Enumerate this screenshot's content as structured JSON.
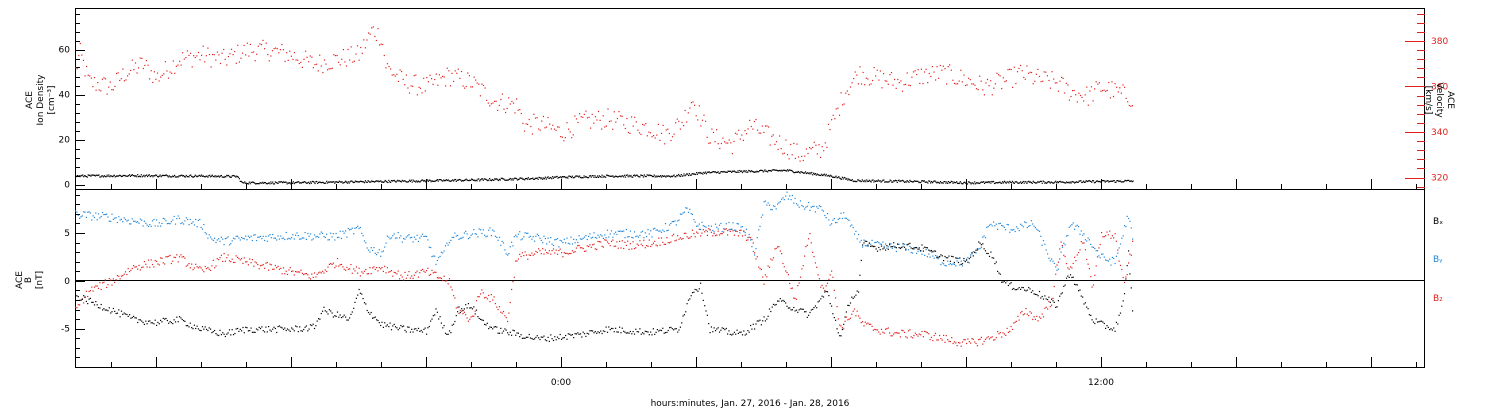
{
  "chart_data": [
    {
      "type": "scatter",
      "panel": "ion-density-velocity",
      "xlabel": "hours:minutes, Jan. 27, 2016 - Jan. 28, 2016",
      "x_unit": "hours relative to 2016-01-28 00:00",
      "xlim": [
        -10.8,
        19.2
      ],
      "x_ticks": [
        {
          "x": 0,
          "label": "0:00"
        },
        {
          "x": 12,
          "label": "12:00"
        }
      ],
      "ylabel_left": [
        "ACE",
        "Ion Density",
        "[cm⁻³]"
      ],
      "ylim_left": [
        -2,
        78
      ],
      "yticks_left": [
        0,
        20,
        40,
        60
      ],
      "ylabel_right": [
        "ACE",
        "Velocity",
        "[km/s]"
      ],
      "ylim_right": [
        315,
        394
      ],
      "yticks_right": [
        320,
        340,
        360,
        380
      ],
      "series": [
        {
          "axis": "left",
          "color": "#000000",
          "points": [
            [
              -10.8,
              4
            ],
            [
              -9.5,
              4.2
            ],
            [
              -8,
              4
            ],
            [
              -7.2,
              3.8
            ],
            [
              -7.1,
              1
            ],
            [
              -6,
              1
            ],
            [
              -4,
              1.6
            ],
            [
              -2,
              2.2
            ],
            [
              -0.5,
              3
            ],
            [
              0,
              3.5
            ],
            [
              1,
              4
            ],
            [
              2.5,
              4
            ],
            [
              3.2,
              5.5
            ],
            [
              4,
              6
            ],
            [
              5,
              6.5
            ],
            [
              6,
              4
            ],
            [
              6.5,
              2
            ],
            [
              8,
              1.5
            ],
            [
              9,
              1
            ],
            [
              10,
              1.2
            ],
            [
              11,
              1.3
            ],
            [
              12.7,
              1.8
            ]
          ]
        },
        {
          "axis": "right",
          "color": "#e0201d",
          "points": [
            [
              -10.8,
              367
            ],
            [
              -10.7,
              375
            ],
            [
              -10.5,
              362
            ],
            [
              -10,
              360
            ],
            [
              -9.7,
              366
            ],
            [
              -9.3,
              370
            ],
            [
              -9,
              364
            ],
            [
              -8.5,
              372
            ],
            [
              -8,
              374
            ],
            [
              -7.5,
              372
            ],
            [
              -7,
              376
            ],
            [
              -6.5,
              376
            ],
            [
              -6,
              374
            ],
            [
              -5.5,
              370
            ],
            [
              -5,
              372
            ],
            [
              -4.5,
              374
            ],
            [
              -4.2,
              385
            ],
            [
              -4,
              382
            ],
            [
              -3.9,
              369
            ],
            [
              -3.5,
              362
            ],
            [
              -3,
              360
            ],
            [
              -2.5,
              365
            ],
            [
              -2,
              362
            ],
            [
              -1.5,
              354
            ],
            [
              -1,
              352
            ],
            [
              -0.8,
              343
            ],
            [
              -0.5,
              344
            ],
            [
              0,
              340
            ],
            [
              0.5,
              345
            ],
            [
              1,
              346
            ],
            [
              1.5,
              344
            ],
            [
              2,
              342
            ],
            [
              2.3,
              339
            ],
            [
              2.7,
              345
            ],
            [
              2.9,
              355
            ],
            [
              3.3,
              338
            ],
            [
              3.8,
              335
            ],
            [
              4.2,
              343
            ],
            [
              4.8,
              336
            ],
            [
              5.3,
              330
            ],
            [
              5.8,
              333
            ],
            [
              6.1,
              348
            ],
            [
              6.3,
              358
            ],
            [
              6.6,
              366
            ],
            [
              7,
              364
            ],
            [
              7.5,
              362
            ],
            [
              8,
              365
            ],
            [
              8.5,
              366
            ],
            [
              9,
              363
            ],
            [
              9.4,
              360
            ],
            [
              9.9,
              363
            ],
            [
              10.2,
              366
            ],
            [
              10.5,
              364
            ],
            [
              11,
              362
            ],
            [
              11.3,
              358
            ],
            [
              11.7,
              356
            ],
            [
              12,
              360
            ],
            [
              12.3,
              358
            ],
            [
              12.7,
              355
            ]
          ]
        }
      ]
    },
    {
      "type": "scatter",
      "panel": "magnetic-field",
      "xlim": [
        -10.8,
        19.2
      ],
      "ylabel": [
        "ACE",
        "B",
        "[nT]"
      ],
      "ylim": [
        -9,
        9.5
      ],
      "yticks": [
        -5,
        0,
        5
      ],
      "zero_line": true,
      "legend": [
        "Bₓ",
        "Bᵧ",
        "B₂"
      ],
      "series": [
        {
          "name": "Bₓ",
          "color": "#000000",
          "points": [
            [
              -10.8,
              -1.5
            ],
            [
              -10,
              -3
            ],
            [
              -9.5,
              -4
            ],
            [
              -9,
              -4.3
            ],
            [
              -8.5,
              -4
            ],
            [
              -8,
              -5
            ],
            [
              -7.5,
              -5.5
            ],
            [
              -7,
              -5
            ],
            [
              -6,
              -5
            ],
            [
              -5.5,
              -4.8
            ],
            [
              -5.3,
              -3
            ],
            [
              -5,
              -3.5
            ],
            [
              -4.7,
              -4
            ],
            [
              -4.5,
              -1
            ],
            [
              -4.3,
              -3
            ],
            [
              -4,
              -4.5
            ],
            [
              -3.5,
              -5
            ],
            [
              -3,
              -5.2
            ],
            [
              -2.8,
              -3
            ],
            [
              -2.6,
              -5
            ],
            [
              -2.5,
              -5.5
            ],
            [
              -2.3,
              -3
            ],
            [
              -2,
              -2.5
            ],
            [
              -1.8,
              -4
            ],
            [
              -1.5,
              -5
            ],
            [
              -1,
              -5.5
            ],
            [
              -0.5,
              -6
            ],
            [
              0,
              -5.8
            ],
            [
              0.5,
              -5.5
            ],
            [
              1,
              -5
            ],
            [
              2,
              -5.3
            ],
            [
              2.6,
              -5
            ],
            [
              2.9,
              -1
            ],
            [
              3.1,
              -0.5
            ],
            [
              3.3,
              -5
            ],
            [
              4,
              -5.5
            ],
            [
              4.5,
              -4
            ],
            [
              4.8,
              -2
            ],
            [
              5.5,
              -3.5
            ],
            [
              5.9,
              -1
            ],
            [
              6.2,
              -6
            ],
            [
              6.4,
              -2
            ],
            [
              6.6,
              -1
            ],
            [
              6.7,
              4
            ],
            [
              7,
              3.5
            ],
            [
              7.5,
              3.8
            ],
            [
              8,
              3.5
            ],
            [
              8.5,
              2.5
            ],
            [
              9,
              2
            ],
            [
              9.3,
              4
            ],
            [
              9.6,
              2.5
            ],
            [
              9.8,
              0
            ],
            [
              10,
              -0.5
            ],
            [
              10.5,
              -1
            ],
            [
              11,
              -2.5
            ],
            [
              11.3,
              1
            ],
            [
              11.6,
              -2
            ],
            [
              11.8,
              -4
            ],
            [
              12,
              -4.5
            ],
            [
              12.3,
              -5
            ],
            [
              12.5,
              -2
            ],
            [
              12.6,
              3
            ],
            [
              12.7,
              -3.5
            ]
          ]
        },
        {
          "name": "Bᵧ",
          "color": "#1e86d9",
          "points": [
            [
              -10.8,
              7
            ],
            [
              -10,
              6.7
            ],
            [
              -9.5,
              6.3
            ],
            [
              -9,
              6
            ],
            [
              -8.5,
              6.5
            ],
            [
              -8,
              6
            ],
            [
              -7.8,
              4.5
            ],
            [
              -7.5,
              4.2
            ],
            [
              -7,
              4.5
            ],
            [
              -6,
              4.8
            ],
            [
              -5,
              4.7
            ],
            [
              -4.5,
              5.5
            ],
            [
              -4.3,
              3.5
            ],
            [
              -4,
              3
            ],
            [
              -3.8,
              5
            ],
            [
              -3.5,
              4.5
            ],
            [
              -3,
              4.5
            ],
            [
              -2.8,
              2
            ],
            [
              -2.6,
              3
            ],
            [
              -2.5,
              4.5
            ],
            [
              -2,
              5
            ],
            [
              -1.5,
              5.2
            ],
            [
              -1.2,
              3
            ],
            [
              -1,
              4.8
            ],
            [
              -0.5,
              4.5
            ],
            [
              0,
              4
            ],
            [
              0.5,
              4.5
            ],
            [
              1,
              5
            ],
            [
              2,
              5
            ],
            [
              2.5,
              6
            ],
            [
              2.8,
              7.5
            ],
            [
              3,
              6
            ],
            [
              3.3,
              5.5
            ],
            [
              3.8,
              5.8
            ],
            [
              4.1,
              5.3
            ],
            [
              4.3,
              3
            ],
            [
              4.5,
              8
            ],
            [
              4.8,
              7.8
            ],
            [
              5,
              9
            ],
            [
              5.3,
              8
            ],
            [
              5.8,
              7.5
            ],
            [
              6,
              6
            ],
            [
              6.3,
              7
            ],
            [
              6.5,
              5
            ],
            [
              6.7,
              4
            ],
            [
              7.1,
              3.7
            ],
            [
              7.6,
              3.5
            ],
            [
              8,
              3.2
            ],
            [
              8.5,
              2
            ],
            [
              9,
              2
            ],
            [
              9.3,
              3.5
            ],
            [
              9.5,
              6
            ],
            [
              10,
              5.5
            ],
            [
              10.5,
              6
            ],
            [
              10.8,
              3
            ],
            [
              11,
              1
            ],
            [
              11.3,
              6
            ],
            [
              11.6,
              5
            ],
            [
              12,
              2.5
            ],
            [
              12.3,
              2
            ],
            [
              12.6,
              7
            ],
            [
              12.7,
              4
            ]
          ]
        },
        {
          "name": "B₂",
          "color": "#e0201d",
          "points": [
            [
              -10.8,
              -3
            ],
            [
              -10.5,
              -1
            ],
            [
              -10,
              0
            ],
            [
              -9.5,
              1.5
            ],
            [
              -9,
              2
            ],
            [
              -8.5,
              2.5
            ],
            [
              -8,
              1
            ],
            [
              -7.5,
              2.5
            ],
            [
              -7,
              2
            ],
            [
              -6.5,
              1.5
            ],
            [
              -6,
              1
            ],
            [
              -5.5,
              0.5
            ],
            [
              -5,
              2
            ],
            [
              -4.5,
              1
            ],
            [
              -4,
              1.5
            ],
            [
              -3.5,
              0.5
            ],
            [
              -3,
              1
            ],
            [
              -2.5,
              0
            ],
            [
              -2.3,
              -3
            ],
            [
              -2,
              -4
            ],
            [
              -1.8,
              -1
            ],
            [
              -1.5,
              -2
            ],
            [
              -1.2,
              -4
            ],
            [
              -1,
              2.5
            ],
            [
              -0.5,
              3
            ],
            [
              0,
              3
            ],
            [
              0.5,
              3.5
            ],
            [
              1,
              4
            ],
            [
              1.5,
              3.8
            ],
            [
              2,
              4
            ],
            [
              2.5,
              4.5
            ],
            [
              3,
              5
            ],
            [
              3.5,
              5.2
            ],
            [
              4,
              5
            ],
            [
              4.2,
              4.5
            ],
            [
              4.5,
              0
            ],
            [
              4.8,
              4
            ],
            [
              5.2,
              -2
            ],
            [
              5.5,
              5
            ],
            [
              5.8,
              -1
            ],
            [
              6,
              1
            ],
            [
              6.2,
              -5
            ],
            [
              6.5,
              -3
            ],
            [
              6.7,
              -4.5
            ],
            [
              7,
              -5
            ],
            [
              7.5,
              -5.5
            ],
            [
              8,
              -5.5
            ],
            [
              8.5,
              -6
            ],
            [
              9,
              -6.5
            ],
            [
              9.5,
              -6
            ],
            [
              10,
              -5
            ],
            [
              10.3,
              -3
            ],
            [
              10.6,
              -4
            ],
            [
              10.9,
              -2
            ],
            [
              11.1,
              4
            ],
            [
              11.3,
              1
            ],
            [
              11.6,
              4.5
            ],
            [
              11.8,
              -1
            ],
            [
              12,
              5
            ],
            [
              12.3,
              4.8
            ],
            [
              12.5,
              -0.5
            ],
            [
              12.7,
              4
            ]
          ]
        }
      ]
    }
  ]
}
